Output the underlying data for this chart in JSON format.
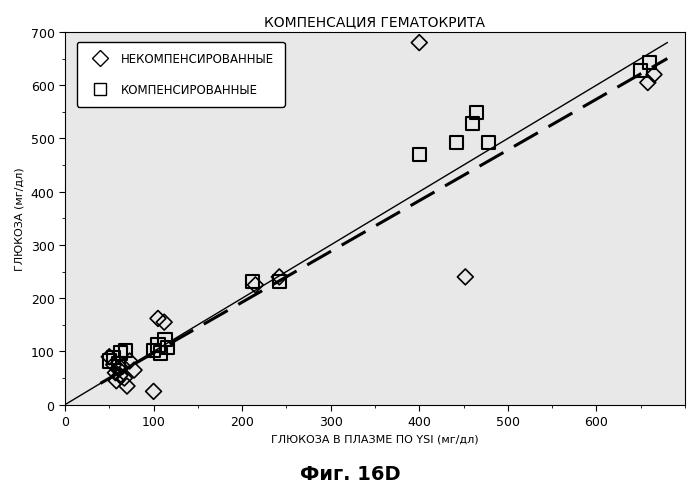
{
  "title": "КОМПЕНСАЦИЯ ГЕМАТОКРИТА",
  "xlabel": "ГЛЮКОЗА В ПЛАЗМЕ ПО YSI (мг/дл)",
  "ylabel": "ГЛЮКОЗА (мг/дл)",
  "figcaption": "Фиг. 16D",
  "xlim": [
    0,
    700
  ],
  "ylim": [
    0,
    700
  ],
  "xticks": [
    0,
    100,
    200,
    300,
    400,
    500,
    600
  ],
  "yticks": [
    0,
    100,
    200,
    300,
    400,
    500,
    600,
    700
  ],
  "diamond_points": [
    [
      50,
      90
    ],
    [
      55,
      75
    ],
    [
      57,
      60
    ],
    [
      58,
      45
    ],
    [
      60,
      68
    ],
    [
      62,
      55
    ],
    [
      65,
      72
    ],
    [
      67,
      50
    ],
    [
      70,
      35
    ],
    [
      73,
      82
    ],
    [
      78,
      65
    ],
    [
      100,
      25
    ],
    [
      105,
      162
    ],
    [
      112,
      155
    ],
    [
      215,
      225
    ],
    [
      242,
      240
    ],
    [
      400,
      680
    ],
    [
      452,
      240
    ],
    [
      658,
      605
    ],
    [
      665,
      620
    ]
  ],
  "square_points": [
    [
      50,
      82
    ],
    [
      55,
      88
    ],
    [
      60,
      78
    ],
    [
      63,
      97
    ],
    [
      68,
      102
    ],
    [
      100,
      102
    ],
    [
      105,
      112
    ],
    [
      108,
      97
    ],
    [
      113,
      122
    ],
    [
      116,
      107
    ],
    [
      212,
      232
    ],
    [
      242,
      232
    ],
    [
      400,
      470
    ],
    [
      442,
      492
    ],
    [
      460,
      528
    ],
    [
      465,
      548
    ],
    [
      478,
      492
    ],
    [
      650,
      628
    ],
    [
      660,
      642
    ]
  ],
  "solid_line_x": [
    0,
    680
  ],
  "solid_line_y": [
    0,
    680
  ],
  "dashed_line_x": [
    40,
    680
  ],
  "dashed_line_y": [
    40,
    650
  ],
  "legend_labels": [
    "НЕКОМПЕНСИРОВАННЫЕ",
    "КОМПЕНСИРОВАННЫЕ"
  ],
  "bg_color": "#ffffff",
  "plot_bg_color": "#e8e8e8",
  "line_color": "#000000",
  "marker_color": "#000000",
  "title_fontsize": 10,
  "label_fontsize": 8,
  "tick_fontsize": 9,
  "caption_fontsize": 14
}
